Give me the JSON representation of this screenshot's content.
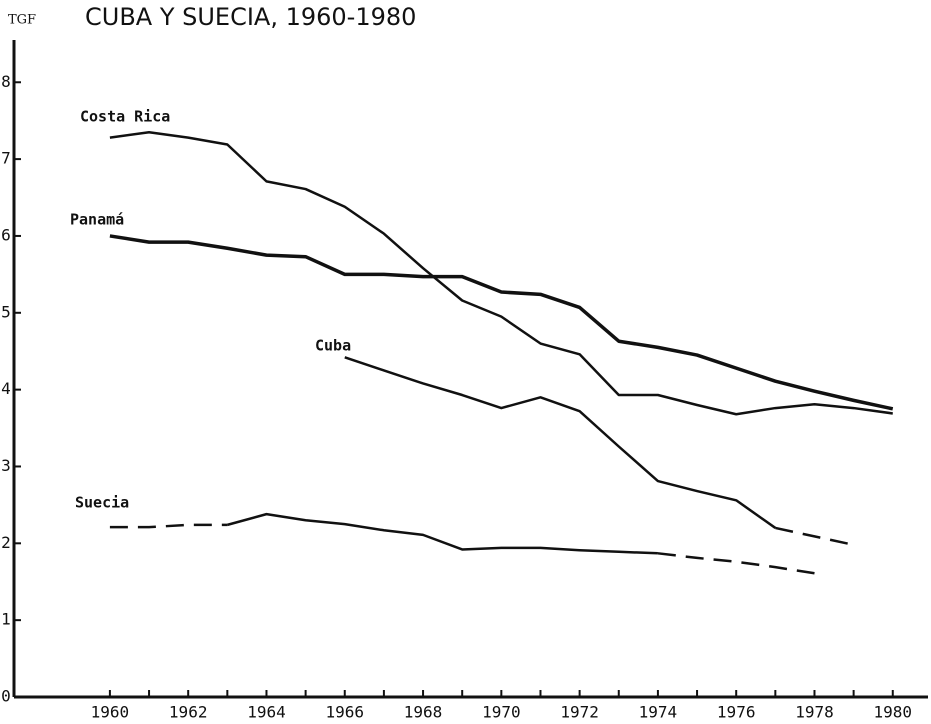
{
  "chart_data": {
    "type": "line",
    "title": "CUBA Y SUECIA, 1960-1980",
    "y_label": "TGF",
    "xlim": [
      1957.55,
      1980.9
    ],
    "ylim": [
      0,
      8.55
    ],
    "xticks": [
      1960,
      1962,
      1964,
      1966,
      1968,
      1970,
      1972,
      1974,
      1976,
      1978,
      1980
    ],
    "minor_xticks": [
      1961,
      1963,
      1965,
      1967,
      1969,
      1971,
      1973,
      1975,
      1977,
      1979
    ],
    "yticks": [
      0,
      1,
      2,
      3,
      4,
      5,
      6,
      7,
      8
    ],
    "color": "#111111",
    "series": [
      {
        "name": "Costa Rica",
        "color": "#111111",
        "x": [
          1960,
          1961,
          1962,
          1963,
          1964,
          1965,
          1966,
          1967,
          1968,
          1969,
          1970,
          1971,
          1972,
          1973,
          1974,
          1975,
          1976,
          1977,
          1978,
          1979,
          1980
        ],
        "values": [
          7.28,
          7.35,
          7.28,
          7.19,
          6.71,
          6.61,
          6.38,
          6.03,
          5.58,
          5.16,
          4.95,
          4.6,
          4.46,
          3.93,
          3.93,
          3.8,
          3.68,
          3.76,
          3.81,
          3.76,
          3.69
        ],
        "dashed": []
      },
      {
        "name": "Panamá",
        "color": "#111111",
        "x": [
          1960,
          1961,
          1962,
          1963,
          1964,
          1965,
          1966,
          1967,
          1968,
          1969,
          1970,
          1971,
          1972,
          1973,
          1974,
          1975,
          1976,
          1977,
          1978,
          1979,
          1980
        ],
        "values": [
          6.0,
          5.92,
          5.92,
          5.84,
          5.75,
          5.73,
          5.5,
          5.5,
          5.47,
          5.47,
          5.27,
          5.24,
          5.07,
          4.63,
          4.55,
          4.45,
          4.28,
          4.11,
          3.98,
          3.86,
          3.75
        ],
        "dashed": []
      },
      {
        "name": "Cuba",
        "color": "#111111",
        "x": [
          1966,
          1967,
          1968,
          1969,
          1970,
          1971,
          1972,
          1973,
          1974,
          1975,
          1976,
          1977,
          1978,
          1979
        ],
        "values": [
          4.42,
          4.25,
          4.08,
          3.93,
          3.76,
          3.9,
          3.72,
          3.26,
          2.81,
          2.68,
          2.56,
          2.2,
          2.09,
          1.98
        ],
        "dashed": [
          [
            1977,
            1979
          ]
        ]
      },
      {
        "name": "Suecia",
        "color": "#111111",
        "x": [
          1960,
          1961,
          1962,
          1963,
          1964,
          1965,
          1966,
          1967,
          1968,
          1969,
          1970,
          1971,
          1972,
          1973,
          1974,
          1975,
          1976,
          1977,
          1978
        ],
        "values": [
          2.21,
          2.21,
          2.24,
          2.24,
          2.38,
          2.3,
          2.25,
          2.17,
          2.11,
          1.92,
          1.94,
          1.94,
          1.91,
          1.89,
          1.87,
          1.81,
          1.76,
          1.69,
          1.61
        ],
        "dashed": [
          [
            1960,
            1963
          ],
          [
            1974,
            1978
          ]
        ]
      }
    ]
  }
}
